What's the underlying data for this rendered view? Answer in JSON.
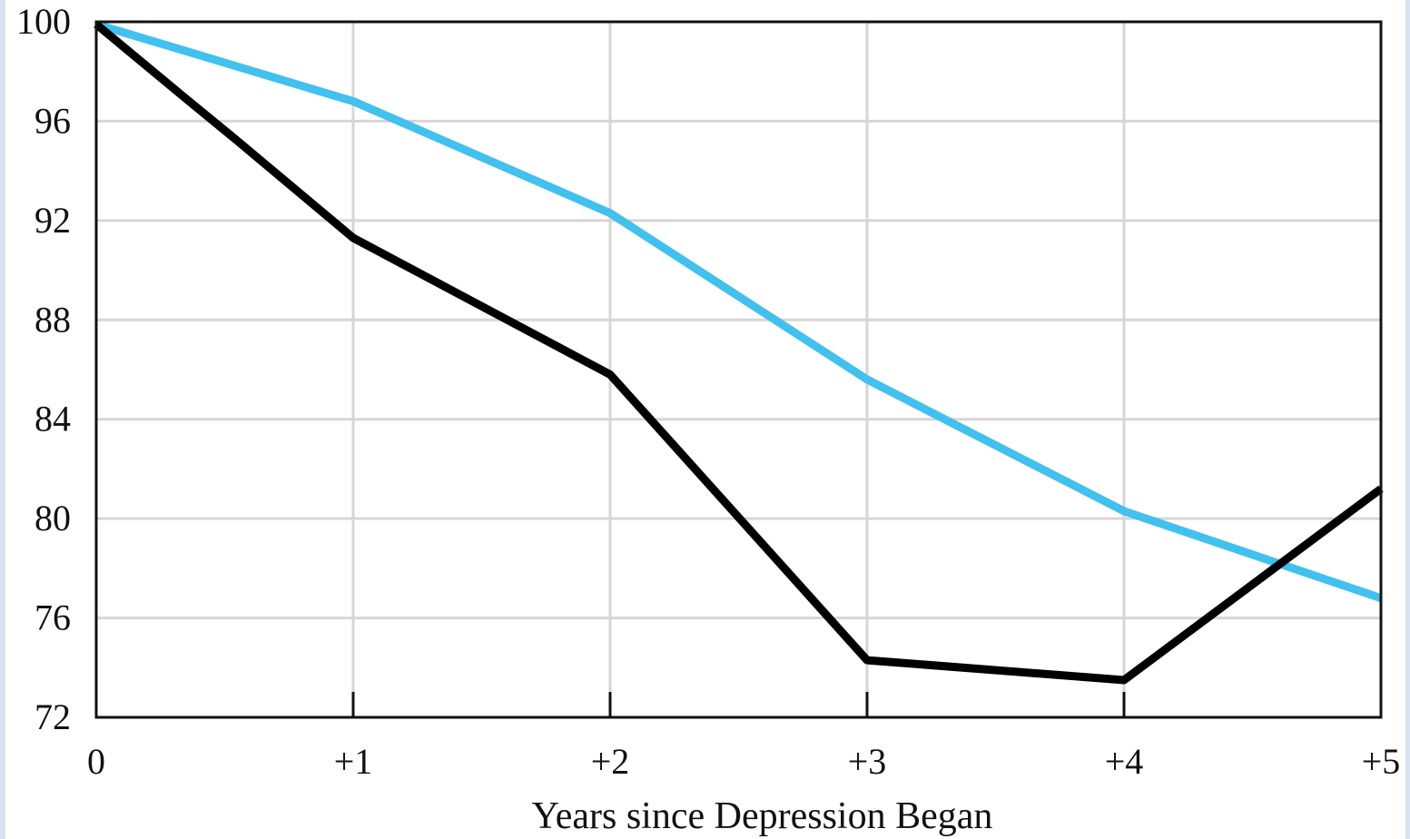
{
  "chart_data": {
    "type": "line",
    "xlabel": "Years since Depression Began",
    "ylabel": "",
    "x": [
      0,
      1,
      2,
      3,
      4,
      5
    ],
    "x_tick_labels": [
      "0",
      "+1",
      "+2",
      "+3",
      "+4",
      "+5"
    ],
    "y_ticks": [
      72,
      76,
      80,
      84,
      88,
      92,
      96,
      100
    ],
    "y_tick_labels": [
      "72",
      "76",
      "80",
      "84",
      "88",
      "92",
      "96",
      "100"
    ],
    "xlim": [
      0,
      5
    ],
    "ylim": [
      72,
      100
    ],
    "grid": true,
    "series": [
      {
        "color": "#42c0ee",
        "x": [
          0,
          1,
          2,
          3,
          4,
          5
        ],
        "values": [
          99.9,
          96.8,
          92.3,
          85.6,
          80.3,
          76.8
        ]
      },
      {
        "color": "#000000",
        "x": [
          0,
          0.35,
          0.55,
          1,
          2,
          3,
          4,
          5
        ],
        "values": [
          99.9,
          96.9,
          95.2,
          91.3,
          85.8,
          74.3,
          73.5,
          81.2
        ]
      }
    ]
  }
}
